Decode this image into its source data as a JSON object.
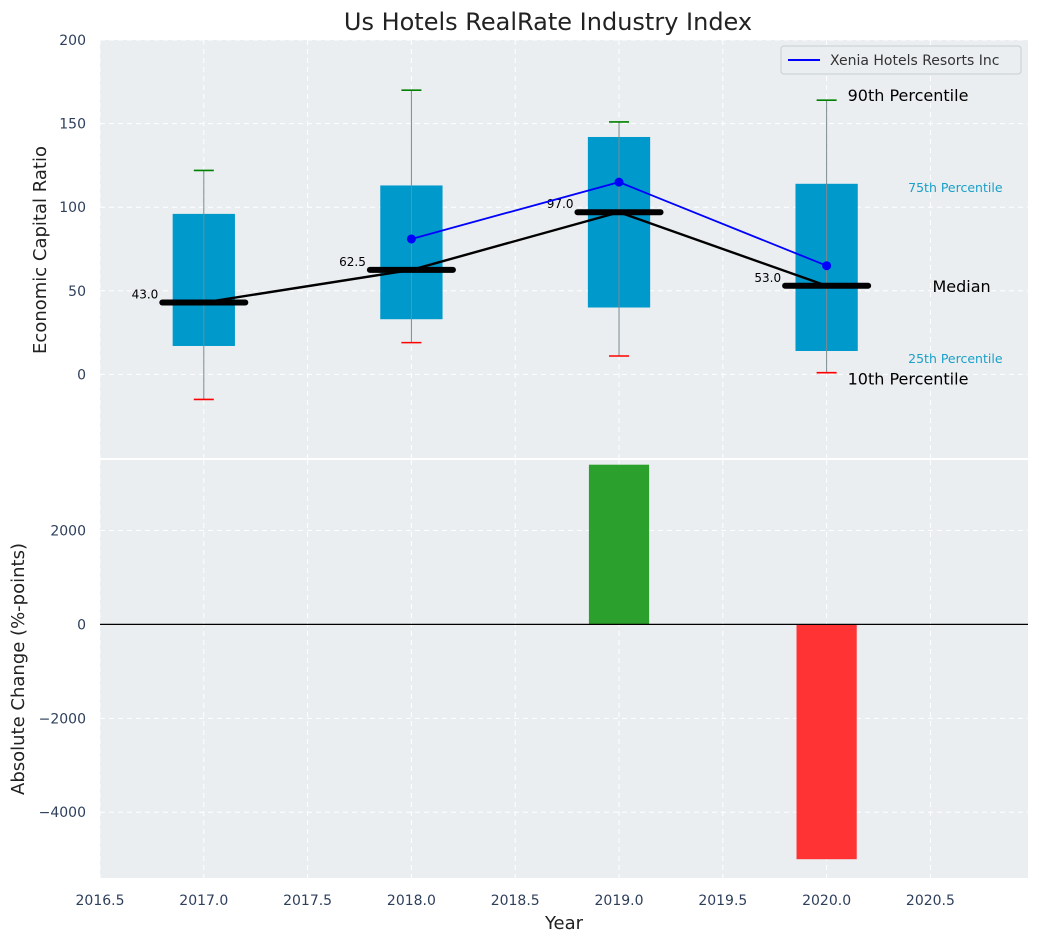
{
  "chart_data": [
    {
      "type": "box",
      "title": "Us Hotels RealRate Industry Index",
      "ylabel": "Economic Capital Ratio",
      "xlim": [
        2016.5,
        2020.97
      ],
      "ylim": [
        -50,
        200
      ],
      "yticks": [
        0,
        50,
        100,
        150,
        200
      ],
      "grid": true,
      "legend": {
        "placement": "top-right",
        "entries": [
          "Xenia Hotels Resorts Inc"
        ]
      },
      "boxes": [
        {
          "x": 2017,
          "p10": -15,
          "p25": 17,
          "median": 43.0,
          "p75": 96,
          "p90": 122
        },
        {
          "x": 2018,
          "p10": 19,
          "p25": 33,
          "median": 62.5,
          "p75": 113,
          "p90": 170
        },
        {
          "x": 2019,
          "p10": 11,
          "p25": 40,
          "median": 97.0,
          "p75": 142,
          "p90": 151
        },
        {
          "x": 2020,
          "p10": 1,
          "p25": 14,
          "median": 53.0,
          "p75": 114,
          "p90": 164
        }
      ],
      "median_labels": [
        "43.0",
        "62.5",
        "97.0",
        "53.0"
      ],
      "company_series": {
        "name": "Xenia Hotels Resorts Inc",
        "x": [
          2018,
          2019,
          2020
        ],
        "values": [
          81,
          115,
          65
        ]
      },
      "percentile_labels": {
        "p90": "90th Percentile",
        "p75": "75th Percentile",
        "median": "Median",
        "p25": "25th Percentile",
        "p10": "10th Percentile"
      },
      "colors": {
        "box": "#0099cc",
        "median": "#000000",
        "series": "#0000ff",
        "p90_cap": "#008000",
        "p10_cap": "#ff0000"
      }
    },
    {
      "type": "bar",
      "ylabel": "Absolute Change (%-points)",
      "xlabel": "Year",
      "xlim": [
        2016.5,
        2020.97
      ],
      "ylim": [
        -5400,
        3500
      ],
      "yticks": [
        -4000,
        -2000,
        0,
        2000
      ],
      "xticks": [
        "2016.5",
        "2017.0",
        "2017.5",
        "2018.0",
        "2018.5",
        "2019.0",
        "2019.5",
        "2020.0",
        "2020.5"
      ],
      "grid": true,
      "x": [
        2019,
        2020
      ],
      "values": [
        3400,
        -5000
      ],
      "colors": {
        "positive": "#2ca02c",
        "negative": "#ff3333"
      }
    }
  ]
}
